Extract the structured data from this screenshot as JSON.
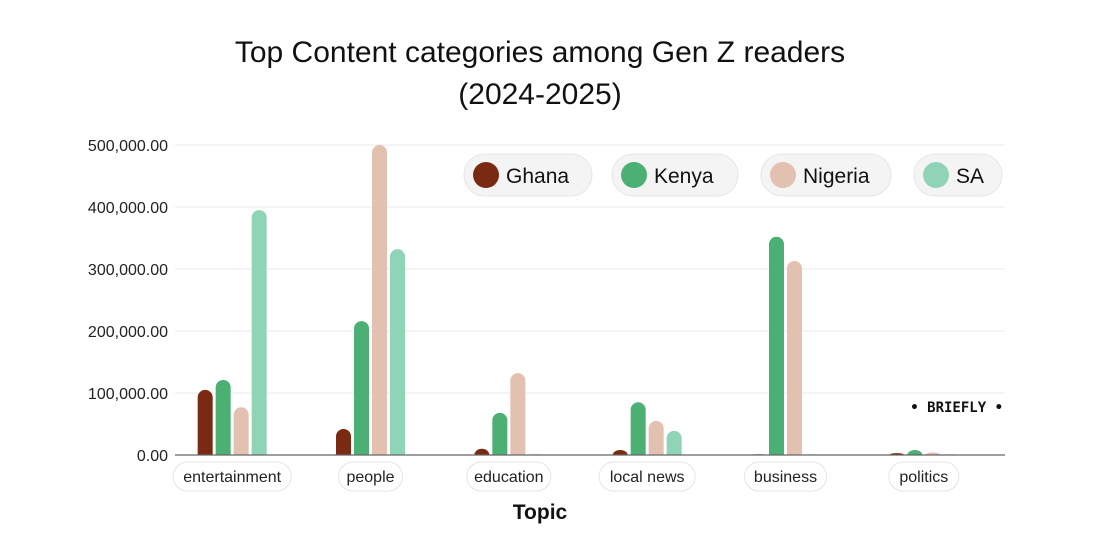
{
  "chart_data": {
    "type": "bar",
    "title": [
      "Top Content categories among Gen Z readers",
      "(2024-2025)"
    ],
    "xlabel": "Topic",
    "ylabel": "",
    "ylim": [
      0,
      500000
    ],
    "yticks": [
      0,
      100000,
      200000,
      300000,
      400000,
      500000
    ],
    "ytick_labels": [
      "0.00",
      "100,000.00",
      "200,000.00",
      "300,000.00",
      "400,000.00",
      "500,000.00"
    ],
    "grid": true,
    "legend_placement": "top-right",
    "categories": [
      "entertainment",
      "people",
      "education",
      "local news",
      "business",
      "politics"
    ],
    "series": [
      {
        "name": "Ghana",
        "color": "#7a2a12",
        "values": [
          105000,
          42000,
          10000,
          8000,
          1000,
          3000
        ]
      },
      {
        "name": "Kenya",
        "color": "#4caf74",
        "values": [
          121000,
          216000,
          68000,
          85000,
          352000,
          8000
        ]
      },
      {
        "name": "Nigeria",
        "color": "#e2c1b1",
        "values": [
          77000,
          500000,
          132000,
          55000,
          313000,
          4000
        ]
      },
      {
        "name": "SA",
        "color": "#90d4b8",
        "values": [
          395000,
          332000,
          0,
          39000,
          0,
          1000
        ]
      }
    ]
  },
  "watermark": "• BRIEFLY •"
}
